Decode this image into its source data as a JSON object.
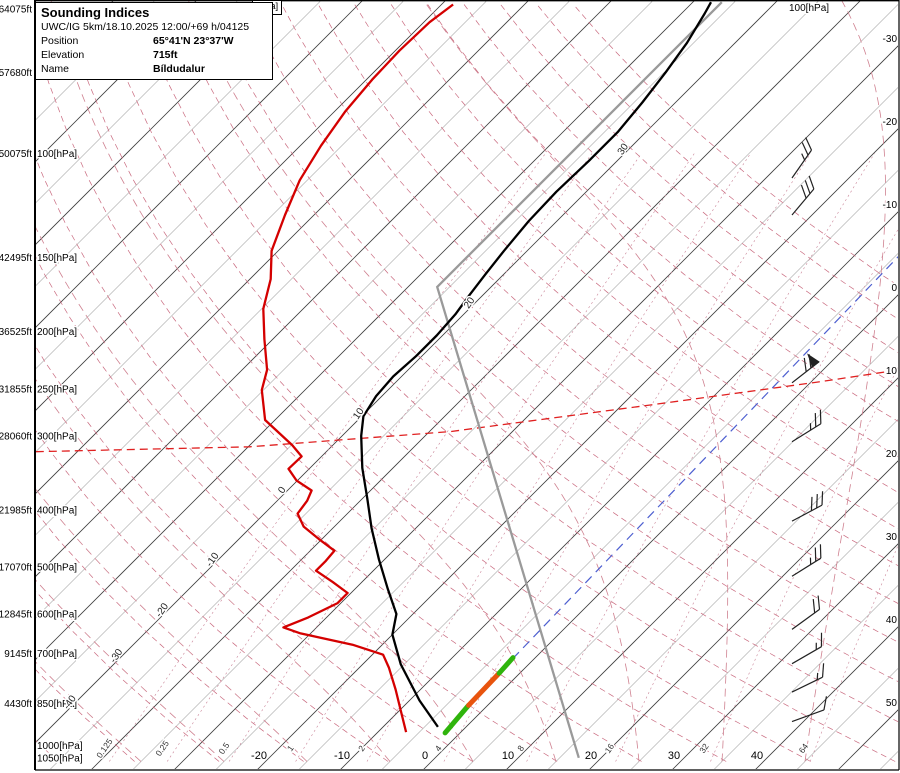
{
  "title_box": {
    "title": "Sounding Indices",
    "model_line": "UWC/IG 5km/18.10.2025 12:00/+69 h/04125",
    "rows": [
      {
        "label": "Position",
        "value": "65°41'N 23°37'W"
      },
      {
        "label": "Elevation",
        "value": "715ft"
      },
      {
        "label": "Name",
        "value": "Bíldudalur"
      }
    ]
  },
  "top_labels": {
    "center": "[hPa]",
    "right": "100[hPa]"
  },
  "chart_data": {
    "type": "skew-t-log-p-sounding",
    "x_axis": {
      "unit": "°C",
      "bottom_ticks": [
        -20,
        -10,
        0,
        10,
        20,
        30,
        40
      ],
      "right_ticks": [
        -30,
        -20,
        -10,
        0,
        10,
        20,
        30,
        40,
        50
      ]
    },
    "y_axis": {
      "unit": "hPa",
      "pressure_ticks_hpa": [
        100,
        150,
        200,
        250,
        300,
        400,
        500,
        600,
        700,
        850,
        1000,
        1050
      ],
      "altitude_labels": [
        {
          "text": "64075ft",
          "p": 57
        },
        {
          "text": "57680ft",
          "p": 73
        },
        {
          "text": "50075ft",
          "p": 100
        },
        {
          "text": "42495ft",
          "p": 150
        },
        {
          "text": "36525ft",
          "p": 200
        },
        {
          "text": "31855ft",
          "p": 250
        },
        {
          "text": "28060ft",
          "p": 300
        },
        {
          "text": "21985ft",
          "p": 400
        },
        {
          "text": "17070ft",
          "p": 500
        },
        {
          "text": "12845ft",
          "p": 600
        },
        {
          "text": "9145ft",
          "p": 700
        },
        {
          "text": "4430ft",
          "p": 850
        }
      ]
    },
    "grid": {
      "isotherm_step_c": 5,
      "dry_adiabat_step_c": 10,
      "moist_adiabat_step_c": 10,
      "mixing_ratio_lines_gkg": [
        0.125,
        0.25,
        0.5,
        1,
        2,
        4,
        8,
        16,
        32,
        64
      ],
      "diagonal_labels": [
        {
          "text": "-40",
          "p": 852
        },
        {
          "text": "-30",
          "p": 711
        },
        {
          "text": "-20",
          "p": 595
        },
        {
          "text": "-10",
          "p": 489
        },
        {
          "text": "0",
          "p": 373
        },
        {
          "text": "10",
          "p": 277
        },
        {
          "text": "20",
          "p": 180
        },
        {
          "text": "30",
          "p": 99
        }
      ],
      "highlight_line_p_t": [
        [
          319,
          -85
        ],
        [
          313,
          -59.8
        ],
        [
          295,
          -37.5
        ],
        [
          266,
          -16.6
        ],
        [
          243,
          1.1
        ],
        [
          232,
          9.2
        ]
      ]
    },
    "series": {
      "temperature": {
        "name": "Temperature",
        "color": "#000000",
        "points_p_t": [
          [
            931,
            -3.4
          ],
          [
            840,
            -8.8
          ],
          [
            730,
            -15.4
          ],
          [
            650,
            -20
          ],
          [
            600,
            -22
          ],
          [
            545,
            -26
          ],
          [
            485,
            -30.7
          ],
          [
            430,
            -35.3
          ],
          [
            383,
            -39.4
          ],
          [
            340,
            -43.7
          ],
          [
            300,
            -47.7
          ],
          [
            278,
            -49.8
          ],
          [
            257,
            -50.7
          ],
          [
            238,
            -51
          ],
          [
            220,
            -50.7
          ],
          [
            203,
            -50.7
          ],
          [
            187,
            -51
          ],
          [
            174,
            -51.6
          ],
          [
            160,
            -52.2
          ],
          [
            146,
            -52.8
          ],
          [
            130,
            -53.4
          ],
          [
            116,
            -53.6
          ],
          [
            103,
            -53.4
          ],
          [
            92,
            -53.4
          ],
          [
            82,
            -54
          ],
          [
            73,
            -54.8
          ],
          [
            65,
            -55.8
          ],
          [
            58,
            -57.2
          ],
          [
            55.5,
            -57.8
          ]
        ]
      },
      "dewpoint": {
        "name": "Dew point",
        "color": "#d40000",
        "points_p_t": [
          [
            950,
            -6.6
          ],
          [
            870,
            -10
          ],
          [
            805,
            -13
          ],
          [
            740,
            -16.4
          ],
          [
            703,
            -18.7
          ],
          [
            676,
            -23.6
          ],
          [
            647,
            -31.2
          ],
          [
            632,
            -34
          ],
          [
            608,
            -32.2
          ],
          [
            575,
            -30.4
          ],
          [
            553,
            -30.4
          ],
          [
            530,
            -33.5
          ],
          [
            507,
            -36.9
          ],
          [
            488,
            -36.9
          ],
          [
            469,
            -37.1
          ],
          [
            448,
            -40.4
          ],
          [
            427,
            -43.7
          ],
          [
            406,
            -46
          ],
          [
            386,
            -46.4
          ],
          [
            371,
            -47.1
          ],
          [
            357,
            -50.1
          ],
          [
            341,
            -52.5
          ],
          [
            325,
            -52.4
          ],
          [
            311,
            -54.9
          ],
          [
            282,
            -61.2
          ],
          [
            251,
            -65.2
          ],
          [
            232,
            -67
          ],
          [
            206,
            -71
          ],
          [
            183,
            -74.8
          ],
          [
            163,
            -77.5
          ],
          [
            146,
            -80.8
          ],
          [
            127,
            -83.5
          ],
          [
            111,
            -85.9
          ],
          [
            97,
            -87.5
          ],
          [
            85,
            -88.7
          ],
          [
            75,
            -89.3
          ],
          [
            67,
            -89.5
          ],
          [
            60,
            -89.3
          ],
          [
            56,
            -88.6
          ]
        ]
      }
    },
    "lines": {
      "reference_standard_atmosphere": {
        "color": "#9a9a9a",
        "points_p_t": [
          [
            1050,
            17.3
          ],
          [
            168,
            -56.5
          ],
          [
            55.5,
            -56.5
          ]
        ]
      },
      "parcel_dashed": {
        "color": "#4d5fd0",
        "points_p_t": [
          [
            714,
            -2.6
          ],
          [
            148,
            -4.6
          ]
        ]
      },
      "parcel_segments": [
        {
          "color": "#2fb40c",
          "from": [
            953,
            -1.8
          ],
          "to": [
            856,
            -2.3
          ]
        },
        {
          "color": "#e8540e",
          "from": [
            856,
            -2.3
          ],
          "to": [
            755,
            -2.5
          ]
        },
        {
          "color": "#2fb40c",
          "from": [
            755,
            -2.5
          ],
          "to": [
            711,
            -2.7
          ]
        }
      ]
    },
    "winds": [
      {
        "p": 110,
        "rot": -55,
        "full": 2,
        "half": 1,
        "pennant": false
      },
      {
        "p": 127,
        "rot": -50,
        "full": 3,
        "half": 0,
        "pennant": false
      },
      {
        "p": 244,
        "rot": -38,
        "full": 2,
        "half": 0,
        "pennant": true
      },
      {
        "p": 307,
        "rot": -32,
        "full": 2,
        "half": 1,
        "pennant": false
      },
      {
        "p": 418,
        "rot": -28,
        "full": 3,
        "half": 0,
        "pennant": false
      },
      {
        "p": 518,
        "rot": -32,
        "full": 2,
        "half": 1,
        "pennant": false
      },
      {
        "p": 637,
        "rot": -36,
        "full": 2,
        "half": 0,
        "pennant": false
      },
      {
        "p": 728,
        "rot": -30,
        "full": 1,
        "half": 1,
        "pennant": false
      },
      {
        "p": 813,
        "rot": -26,
        "full": 1,
        "half": 1,
        "pennant": false
      },
      {
        "p": 912,
        "rot": -20,
        "full": 1,
        "half": 0,
        "pennant": false
      }
    ],
    "colors": {
      "isotherm_major": "#3d3d3d",
      "isotherm_minor": "#6b6b6b",
      "dry_adiabat": "#c9697e",
      "moist_adiabat": "#cf8190",
      "mixing_ratio": "#c98296",
      "highlight": "#e02020"
    }
  }
}
